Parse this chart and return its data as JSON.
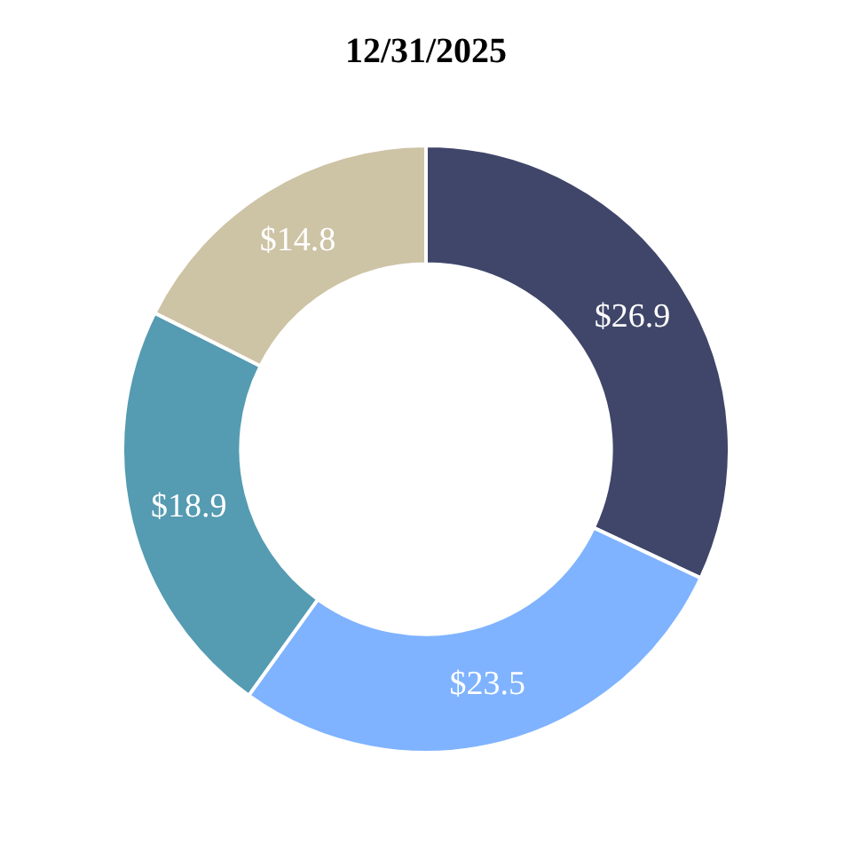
{
  "chart_data": {
    "type": "donut",
    "title": "12/31/2025",
    "categories": [
      null,
      null,
      null,
      null
    ],
    "values": [
      26.9,
      23.5,
      18.9,
      14.8
    ],
    "colors": [
      "#3f4669",
      "#7fb3ff",
      "#559bb2",
      "#cdc3a5"
    ],
    "value_labels": [
      "$26.9",
      "$23.5",
      "$18.9",
      "$14.8"
    ],
    "legend": false
  }
}
